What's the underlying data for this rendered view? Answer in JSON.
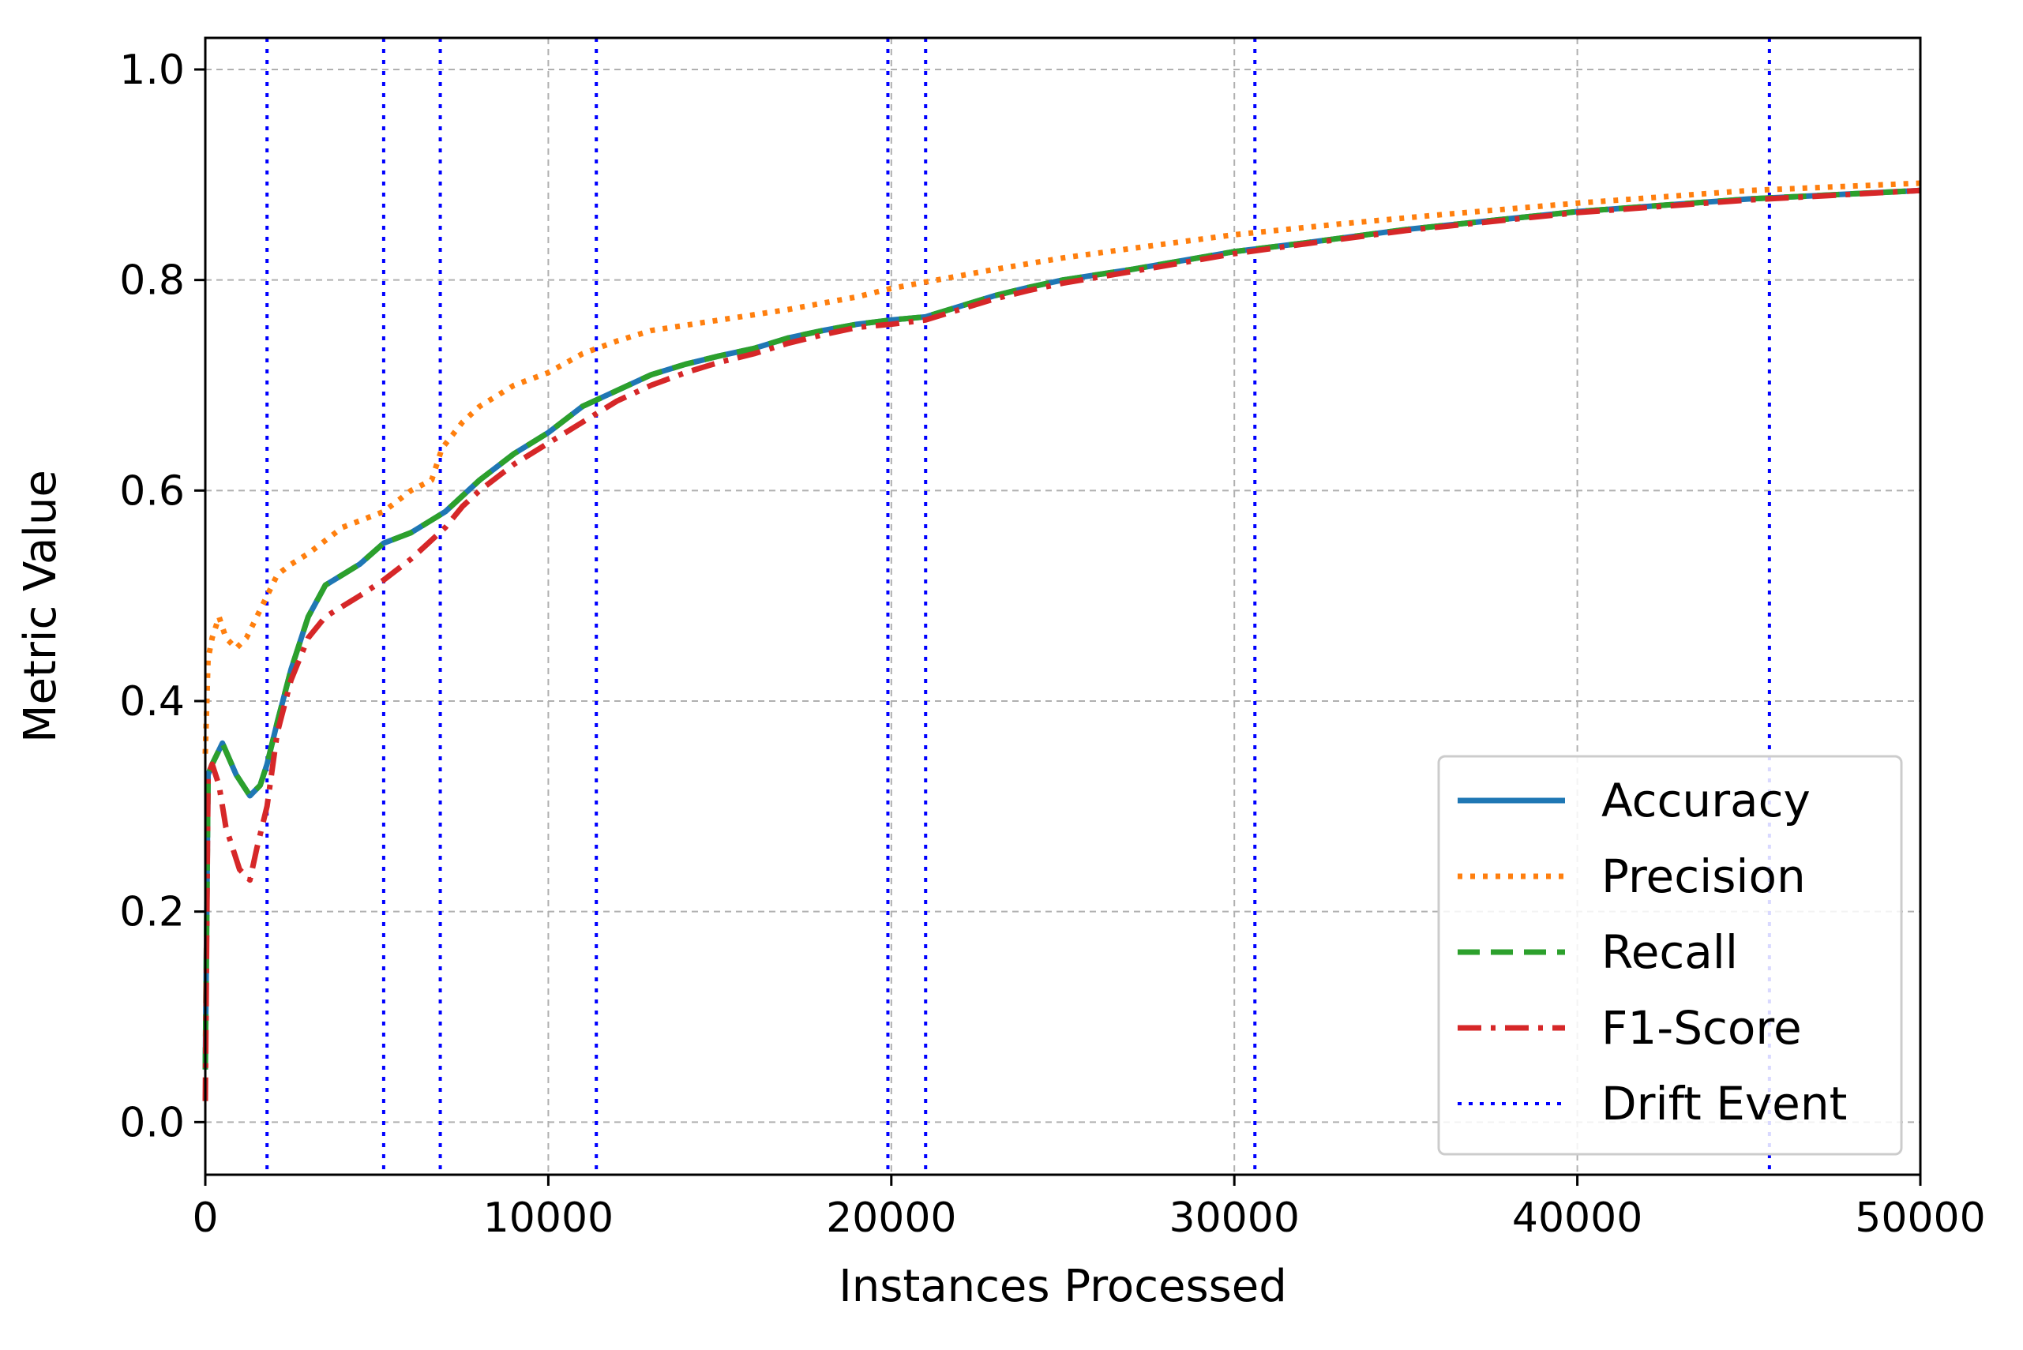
{
  "chart_data": {
    "type": "line",
    "title": "",
    "xlabel": "Instances Processed",
    "ylabel": "Metric Value",
    "xlim": [
      0,
      50000
    ],
    "ylim": [
      -0.05,
      1.03
    ],
    "xticks": [
      0,
      10000,
      20000,
      30000,
      40000,
      50000
    ],
    "xtick_labels": [
      "0",
      "10000",
      "20000",
      "30000",
      "40000",
      "50000"
    ],
    "yticks": [
      0.0,
      0.2,
      0.4,
      0.6,
      0.8,
      1.0
    ],
    "ytick_labels": [
      "0.0",
      "0.2",
      "0.4",
      "0.6",
      "0.8",
      "1.0"
    ],
    "grid": true,
    "legend_position": "lower-right",
    "series": [
      {
        "name": "Accuracy",
        "color": "#1f77b4",
        "style": "solid",
        "x": [
          0,
          80,
          200,
          500,
          900,
          1300,
          1600,
          1800,
          2100,
          2500,
          3000,
          3500,
          4000,
          4500,
          5200,
          6000,
          6500,
          7000,
          7500,
          8000,
          9000,
          10000,
          11000,
          12000,
          13000,
          14000,
          15000,
          16000,
          17000,
          18000,
          19000,
          20000,
          21000,
          22000,
          23000,
          24000,
          25000,
          27000,
          30000,
          32000,
          35000,
          40000,
          45000,
          50000
        ],
        "y": [
          0.05,
          0.33,
          0.34,
          0.36,
          0.33,
          0.31,
          0.32,
          0.34,
          0.38,
          0.43,
          0.48,
          0.51,
          0.52,
          0.53,
          0.55,
          0.56,
          0.57,
          0.58,
          0.595,
          0.61,
          0.635,
          0.655,
          0.68,
          0.695,
          0.71,
          0.72,
          0.728,
          0.735,
          0.745,
          0.752,
          0.758,
          0.762,
          0.765,
          0.775,
          0.785,
          0.793,
          0.8,
          0.81,
          0.827,
          0.835,
          0.848,
          0.865,
          0.877,
          0.885
        ]
      },
      {
        "name": "Precision",
        "color": "#ff7f0e",
        "style": "dotted",
        "x": [
          0,
          80,
          200,
          400,
          600,
          900,
          1200,
          1500,
          1800,
          2100,
          2500,
          3000,
          4000,
          5200,
          6000,
          6600,
          6900,
          7500,
          8000,
          9000,
          10000,
          11000,
          12000,
          13000,
          14000,
          15000,
          17000,
          19000,
          20000,
          21000,
          23000,
          25000,
          27000,
          30000,
          33000,
          36000,
          40000,
          45000,
          50000
        ],
        "y": [
          0.35,
          0.44,
          0.46,
          0.48,
          0.46,
          0.45,
          0.46,
          0.48,
          0.5,
          0.52,
          0.53,
          0.54,
          0.565,
          0.58,
          0.6,
          0.61,
          0.64,
          0.665,
          0.68,
          0.7,
          0.712,
          0.73,
          0.742,
          0.752,
          0.757,
          0.762,
          0.772,
          0.784,
          0.792,
          0.798,
          0.81,
          0.821,
          0.83,
          0.843,
          0.853,
          0.862,
          0.873,
          0.885,
          0.892
        ]
      },
      {
        "name": "Recall",
        "color": "#2ca02c",
        "style": "dashed",
        "x": [
          0,
          80,
          200,
          500,
          900,
          1300,
          1600,
          1800,
          2100,
          2500,
          3000,
          3500,
          4000,
          4500,
          5200,
          6000,
          6500,
          7000,
          7500,
          8000,
          9000,
          10000,
          11000,
          12000,
          13000,
          14000,
          15000,
          16000,
          17000,
          18000,
          19000,
          20000,
          21000,
          22000,
          23000,
          24000,
          25000,
          27000,
          30000,
          32000,
          35000,
          40000,
          45000,
          50000
        ],
        "y": [
          0.05,
          0.33,
          0.34,
          0.36,
          0.33,
          0.31,
          0.32,
          0.34,
          0.38,
          0.43,
          0.48,
          0.51,
          0.52,
          0.53,
          0.55,
          0.56,
          0.57,
          0.58,
          0.595,
          0.61,
          0.635,
          0.655,
          0.68,
          0.695,
          0.71,
          0.72,
          0.728,
          0.735,
          0.745,
          0.752,
          0.758,
          0.762,
          0.765,
          0.775,
          0.785,
          0.793,
          0.8,
          0.81,
          0.827,
          0.835,
          0.848,
          0.865,
          0.877,
          0.885
        ]
      },
      {
        "name": "F1-Score",
        "color": "#d62728",
        "style": "dashdot",
        "x": [
          0,
          80,
          200,
          400,
          600,
          800,
          1000,
          1300,
          1500,
          1800,
          2100,
          2500,
          3000,
          3500,
          4000,
          4500,
          5200,
          6000,
          6500,
          7000,
          7500,
          8000,
          9000,
          10000,
          11000,
          12000,
          13000,
          14000,
          15000,
          16000,
          17000,
          18000,
          19000,
          20000,
          21000,
          22000,
          23000,
          24000,
          25000,
          27000,
          30000,
          32000,
          35000,
          40000,
          45000,
          50000
        ],
        "y": [
          0.02,
          0.33,
          0.34,
          0.32,
          0.28,
          0.26,
          0.24,
          0.23,
          0.26,
          0.3,
          0.37,
          0.42,
          0.46,
          0.48,
          0.49,
          0.5,
          0.515,
          0.535,
          0.55,
          0.565,
          0.585,
          0.6,
          0.625,
          0.645,
          0.665,
          0.685,
          0.7,
          0.712,
          0.722,
          0.73,
          0.74,
          0.748,
          0.755,
          0.758,
          0.762,
          0.772,
          0.782,
          0.79,
          0.797,
          0.808,
          0.825,
          0.834,
          0.847,
          0.864,
          0.876,
          0.885
        ]
      }
    ],
    "drift_events": {
      "name": "Drift Event",
      "color": "#0000ff",
      "style": "dotted",
      "x": [
        1800,
        5200,
        6850,
        11400,
        19900,
        21000,
        30600,
        45600
      ]
    }
  }
}
